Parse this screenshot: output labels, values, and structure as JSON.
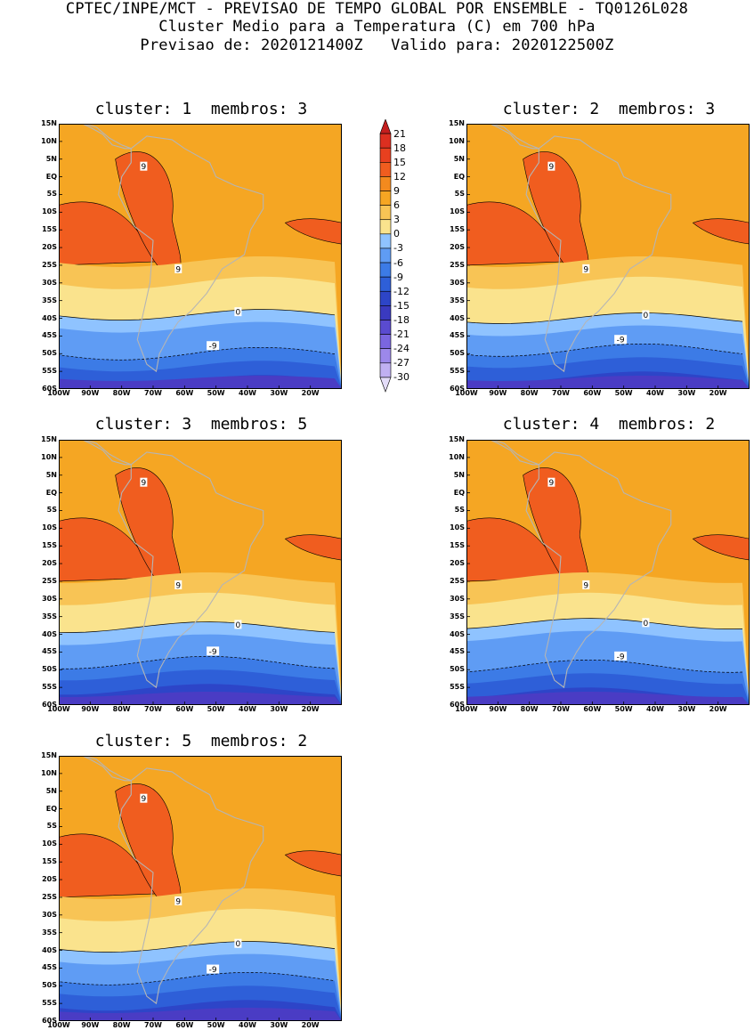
{
  "header": {
    "line1": "CPTEC/INPE/MCT - PREVISAO DE TEMPO GLOBAL POR ENSEMBLE - TQ0126L028",
    "line2": "Cluster Medio para a Temperatura (C) em 700 hPa",
    "line3": "Previsao de: 2020121400Z   Valido para: 2020122500Z"
  },
  "panels": [
    {
      "title": "cluster: 1  membros: 3"
    },
    {
      "title": "cluster: 2  membros: 3"
    },
    {
      "title": "cluster: 3  membros: 5"
    },
    {
      "title": "cluster: 4  membros: 2"
    },
    {
      "title": "cluster: 5  membros: 2"
    }
  ],
  "lat_labels": [
    "15N",
    "10N",
    "5N",
    "EQ",
    "5S",
    "10S",
    "15S",
    "20S",
    "25S",
    "30S",
    "35S",
    "40S",
    "45S",
    "50S",
    "55S",
    "60S"
  ],
  "lon_labels": [
    "100W",
    "90W",
    "80W",
    "70W",
    "60W",
    "50W",
    "40W",
    "30W",
    "20W"
  ],
  "contour_labels": {
    "warm": "9",
    "zero": "0",
    "cold": "-9"
  },
  "colorbar": {
    "ticks": [
      "21",
      "18",
      "15",
      "12",
      "9",
      "6",
      "3",
      "0",
      "-3",
      "-6",
      "-9",
      "-12",
      "-15",
      "-18",
      "-21",
      "-24",
      "-27",
      "-30"
    ],
    "colors": [
      "#c41e1e",
      "#dc2f20",
      "#e8401f",
      "#f05d1f",
      "#f38a1e",
      "#f5a623",
      "#f8c455",
      "#fae38d",
      "#8fc3ff",
      "#5f9cf4",
      "#3c7be6",
      "#2e5fd8",
      "#2d45c8",
      "#3a3ac0",
      "#5a4bd0",
      "#7a66e0",
      "#9c88ea",
      "#c0b0f2",
      "#e3dcf8"
    ]
  }
}
